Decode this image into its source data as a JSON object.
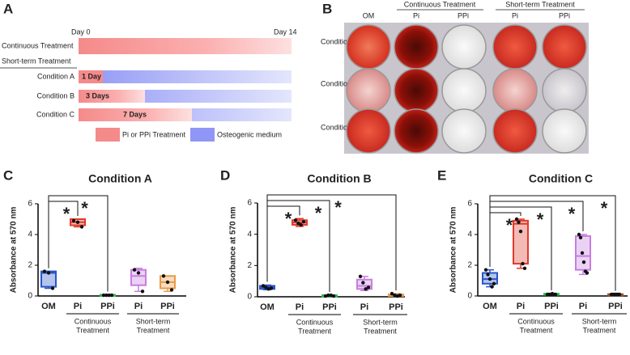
{
  "panel_a": {
    "letter": "A",
    "start": "Day 0",
    "end": "Day 14",
    "continuous": "Continuous Treatment",
    "short_term": "Short-term Treatment",
    "conditions": [
      {
        "label": "Condition A",
        "duration": "1 Day"
      },
      {
        "label": "Condition B",
        "duration": "3 Days"
      },
      {
        "label": "Condition C",
        "duration": "7 Days"
      }
    ],
    "legend": [
      "Pi or PPi Treatment",
      "Osteogenic medium"
    ]
  },
  "panel_b": {
    "letter": "B",
    "columns": [
      "OM",
      "Pi",
      "PPi",
      "Pi",
      "PPi"
    ],
    "groups": [
      "Continuous Treatment",
      "Short-term Treatment"
    ],
    "rows": [
      "Condition A",
      "Condition B",
      "Condition C"
    ]
  },
  "chart_data": [
    {
      "type": "box",
      "panel": "C",
      "title": "Condition A",
      "ylabel": "Absorbance at 570 nm",
      "ylim": [
        0,
        6
      ],
      "yticks": [
        0,
        2,
        4,
        6
      ],
      "categories": [
        "OM",
        "Pi",
        "PPi",
        "Pi",
        "PPi"
      ],
      "groups": [
        {
          "lines": [
            "Continuous",
            "Treatment"
          ]
        },
        {
          "lines": [
            "Short-term",
            "Treatment"
          ]
        }
      ],
      "boxes": [
        {
          "color": "#2a55c8",
          "min": 0.5,
          "q1": 0.6,
          "median": 1.5,
          "q3": 1.6,
          "max": 1.6,
          "points": [
            1.6,
            1.5,
            0.5
          ]
        },
        {
          "color": "#e03a2a",
          "min": 4.5,
          "q1": 4.6,
          "median": 4.8,
          "q3": 5.0,
          "max": 5.0,
          "points": [
            4.9,
            4.8,
            4.5
          ]
        },
        {
          "color": "#2fbf4a",
          "min": 0.05,
          "q1": 0.05,
          "median": 0.05,
          "q3": 0.08,
          "max": 0.08,
          "points": [
            0.05,
            0.05,
            0.05,
            0.05
          ]
        },
        {
          "color": "#c77ee0",
          "min": 0.3,
          "q1": 0.7,
          "median": 1.3,
          "q3": 1.7,
          "max": 1.8,
          "points": [
            1.7,
            1.5,
            0.3
          ]
        },
        {
          "color": "#e89b4a",
          "min": 0.3,
          "q1": 0.5,
          "median": 0.9,
          "q3": 1.3,
          "max": 1.3,
          "points": [
            1.3,
            0.9,
            0.4
          ]
        }
      ],
      "significance": [
        {
          "pair": [
            0,
            1
          ],
          "label": "*"
        },
        {
          "pair": [
            0,
            2
          ],
          "label": "*"
        }
      ]
    },
    {
      "type": "box",
      "panel": "D",
      "title": "Condition B",
      "ylabel": "Absorbance at 570 nm",
      "ylim": [
        0,
        6
      ],
      "yticks": [
        0,
        2,
        4,
        6
      ],
      "categories": [
        "OM",
        "Pi",
        "PPi",
        "Pi",
        "PPi"
      ],
      "groups": [
        {
          "lines": [
            "Continuous",
            "Treatment"
          ]
        },
        {
          "lines": [
            "Short-term",
            "Treatment"
          ]
        }
      ],
      "boxes": [
        {
          "color": "#2a55c8",
          "min": 0.45,
          "q1": 0.5,
          "median": 0.6,
          "q3": 0.7,
          "max": 0.75,
          "points": [
            0.7,
            0.6,
            0.5,
            0.55
          ]
        },
        {
          "color": "#e03a2a",
          "min": 4.5,
          "q1": 4.6,
          "median": 4.75,
          "q3": 4.9,
          "max": 5.0,
          "points": [
            4.9,
            4.7,
            4.6,
            4.8
          ]
        },
        {
          "color": "#2fbf4a",
          "min": 0.05,
          "q1": 0.05,
          "median": 0.1,
          "q3": 0.1,
          "max": 0.1,
          "points": [
            0.05,
            0.1,
            0.1,
            0.05
          ]
        },
        {
          "color": "#c77ee0",
          "min": 0.4,
          "q1": 0.5,
          "median": 0.7,
          "q3": 1.1,
          "max": 1.3,
          "points": [
            1.3,
            0.9,
            0.5,
            0.6
          ]
        },
        {
          "color": "#e89b4a",
          "min": 0.05,
          "q1": 0.05,
          "median": 0.1,
          "q3": 0.15,
          "max": 0.2,
          "points": [
            0.2,
            0.1,
            0.05,
            0.1
          ]
        }
      ],
      "significance": [
        {
          "pair": [
            0,
            1
          ],
          "label": "*"
        },
        {
          "pair": [
            0,
            2
          ],
          "label": "*"
        },
        {
          "pair": [
            0,
            4
          ],
          "label": "*"
        }
      ]
    },
    {
      "type": "box",
      "panel": "E",
      "title": "Condition C",
      "ylabel": "Absorbance at 570 nm",
      "ylim": [
        0,
        6
      ],
      "yticks": [
        0,
        2,
        4,
        6
      ],
      "categories": [
        "OM",
        "Pi",
        "PPi",
        "Pi",
        "PPi"
      ],
      "groups": [
        {
          "lines": [
            "Continuous",
            "Treatment"
          ]
        },
        {
          "lines": [
            "Short-term",
            "Treatment"
          ]
        }
      ],
      "boxes": [
        {
          "color": "#2a55c8",
          "min": 0.6,
          "q1": 0.8,
          "median": 1.1,
          "q3": 1.5,
          "max": 1.7,
          "points": [
            1.7,
            1.4,
            1.1,
            0.6,
            0.8
          ]
        },
        {
          "color": "#e03a2a",
          "min": 1.8,
          "q1": 2.1,
          "median": 4.7,
          "q3": 4.9,
          "max": 5.0,
          "points": [
            5.0,
            4.8,
            4.2,
            2.1,
            1.8
          ]
        },
        {
          "color": "#2fbf4a",
          "min": 0.1,
          "q1": 0.1,
          "median": 0.1,
          "q3": 0.15,
          "max": 0.15,
          "points": [
            0.1,
            0.1,
            0.1,
            0.15,
            0.1,
            0.1
          ]
        },
        {
          "color": "#c77ee0",
          "min": 1.4,
          "q1": 1.7,
          "median": 2.6,
          "q3": 3.9,
          "max": 4.0,
          "points": [
            4.0,
            3.8,
            2.8,
            2.2,
            1.6,
            1.5
          ]
        },
        {
          "color": "#a0522d",
          "min": 0.1,
          "q1": 0.1,
          "median": 0.1,
          "q3": 0.12,
          "max": 0.12,
          "points": [
            0.1,
            0.1,
            0.1,
            0.1,
            0.1,
            0.1,
            0.1
          ]
        }
      ],
      "significance": [
        {
          "pair": [
            0,
            1
          ],
          "label": "*"
        },
        {
          "pair": [
            0,
            2
          ],
          "label": "*"
        },
        {
          "pair": [
            0,
            3
          ],
          "label": "*"
        },
        {
          "pair": [
            0,
            4
          ],
          "label": "*"
        }
      ]
    }
  ]
}
